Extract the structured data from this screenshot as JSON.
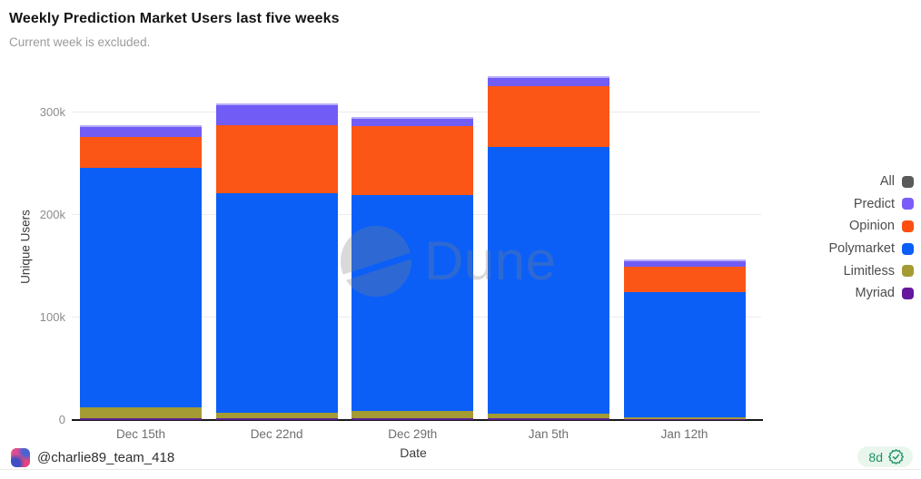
{
  "header": {
    "title": "Weekly Prediction Market Users last five weeks",
    "subtitle": "Current week is excluded."
  },
  "chart_data": {
    "type": "bar",
    "stacked": true,
    "title": "Weekly Prediction Market Users last five weeks",
    "xlabel": "Date",
    "ylabel": "Unique Users",
    "categories": [
      "Dec 15th",
      "Dec 22nd",
      "Dec 29th",
      "Jan 5th",
      "Jan 12th"
    ],
    "series": [
      {
        "name": "Myriad",
        "color": "#5f2494",
        "values": [
          2000,
          1500,
          2000,
          2000,
          500
        ]
      },
      {
        "name": "Limitless",
        "color": "#a59b33",
        "values": [
          10000,
          6000,
          6500,
          4500,
          2000
        ]
      },
      {
        "name": "Polymarket",
        "color": "#0b5ff7",
        "values": [
          234000,
          214000,
          211000,
          260000,
          122000
        ]
      },
      {
        "name": "Opinion",
        "color": "#fb5616",
        "values": [
          30000,
          66000,
          67000,
          59000,
          25500
        ]
      },
      {
        "name": "Predict",
        "color": "#715cf5",
        "values": [
          10000,
          19500,
          7500,
          8000,
          5000
        ]
      }
    ],
    "totals": [
      286000,
      307000,
      294000,
      333500,
      155000
    ],
    "ylim": [
      0,
      340000
    ],
    "yticks": [
      {
        "value": 0,
        "label": "0"
      },
      {
        "value": 100000,
        "label": "100k"
      },
      {
        "value": 200000,
        "label": "200k"
      },
      {
        "value": 300000,
        "label": "300k"
      }
    ],
    "grid": true,
    "legend_position": "right",
    "legend": [
      {
        "label": "All",
        "color": "#5a5a5a"
      },
      {
        "label": "Predict",
        "color": "#7b5cf8"
      },
      {
        "label": "Opinion",
        "color": "#fb4f12"
      },
      {
        "label": "Polymarket",
        "color": "#0b5ef6"
      },
      {
        "label": "Limitless",
        "color": "#a59b33"
      },
      {
        "label": "Myriad",
        "color": "#65189d"
      }
    ]
  },
  "watermark": {
    "text": "Dune",
    "logo": "dune-logo-circle"
  },
  "footer": {
    "username": "@charlie89_team_418",
    "badge": "8d",
    "badge_icon": "verified-seal-icon"
  }
}
